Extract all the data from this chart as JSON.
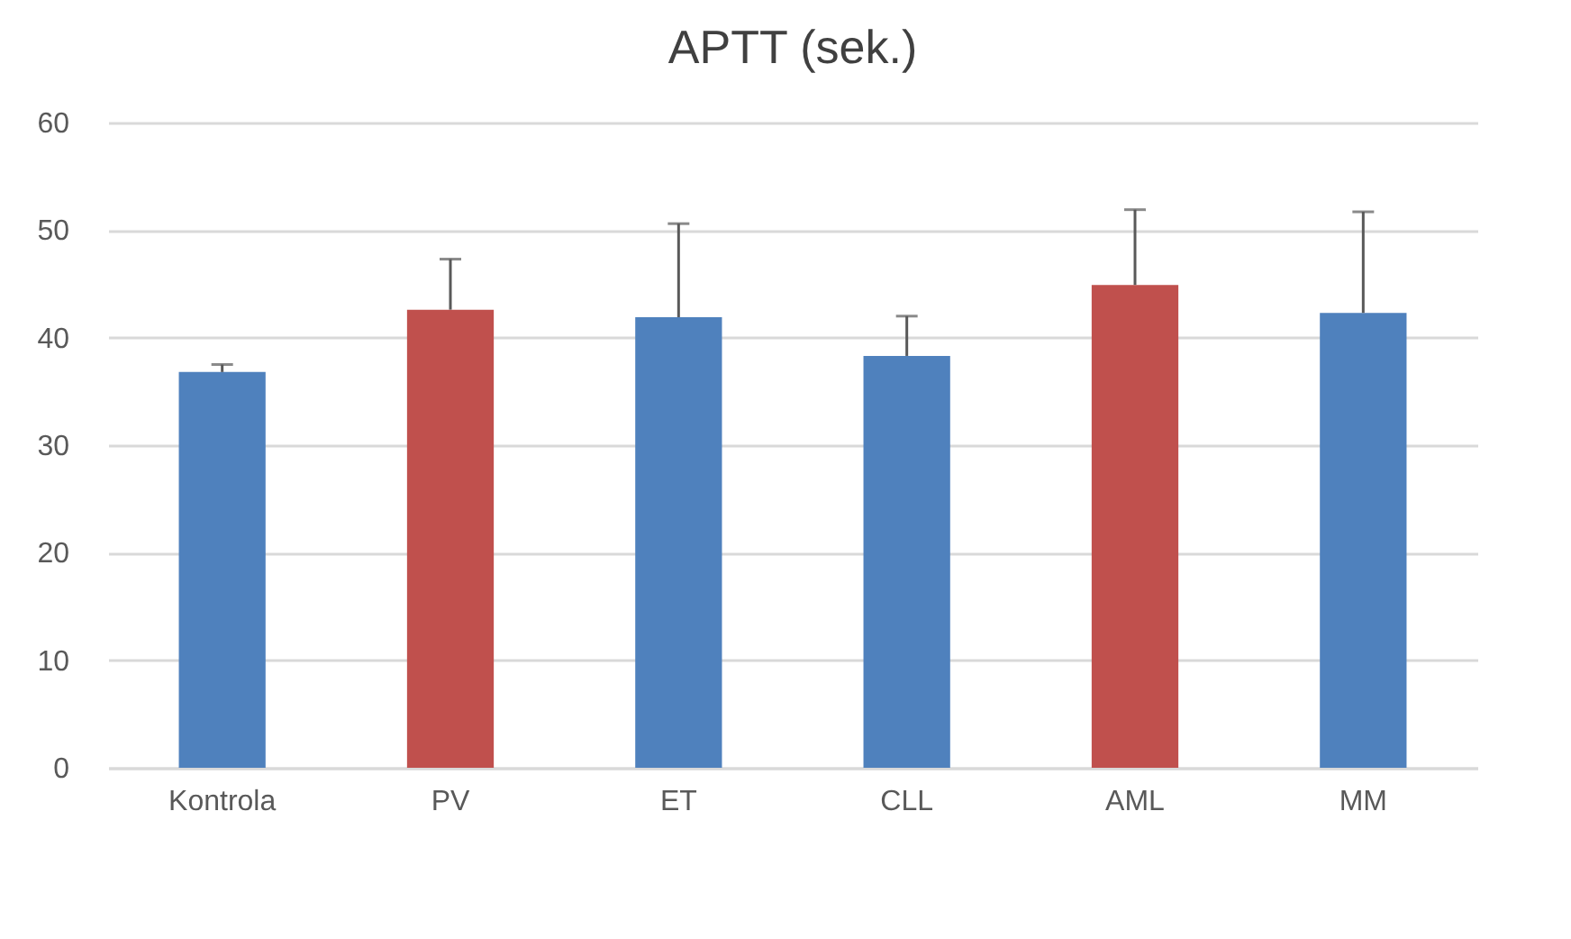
{
  "chart_data": {
    "type": "bar",
    "title": "APTT (sek.)",
    "categories": [
      "Kontrola",
      "PV",
      "ET",
      "CLL",
      "AML",
      "MM"
    ],
    "values": [
      36.8,
      42.6,
      41.9,
      38.3,
      44.9,
      42.3
    ],
    "colors": [
      "#4f81bd",
      "#c0504d",
      "#4f81bd",
      "#4f81bd",
      "#c0504d",
      "#4f81bd"
    ],
    "errors": [
      [
        36.8,
        37.5
      ],
      [
        42.6,
        47.3
      ],
      [
        41.9,
        50.6
      ],
      [
        38.3,
        42.0
      ],
      [
        44.9,
        51.9
      ],
      [
        42.3,
        51.7
      ]
    ],
    "ylim": [
      0,
      60
    ],
    "yticks": [
      0,
      10,
      20,
      30,
      40,
      50,
      60
    ],
    "grid": "y"
  }
}
